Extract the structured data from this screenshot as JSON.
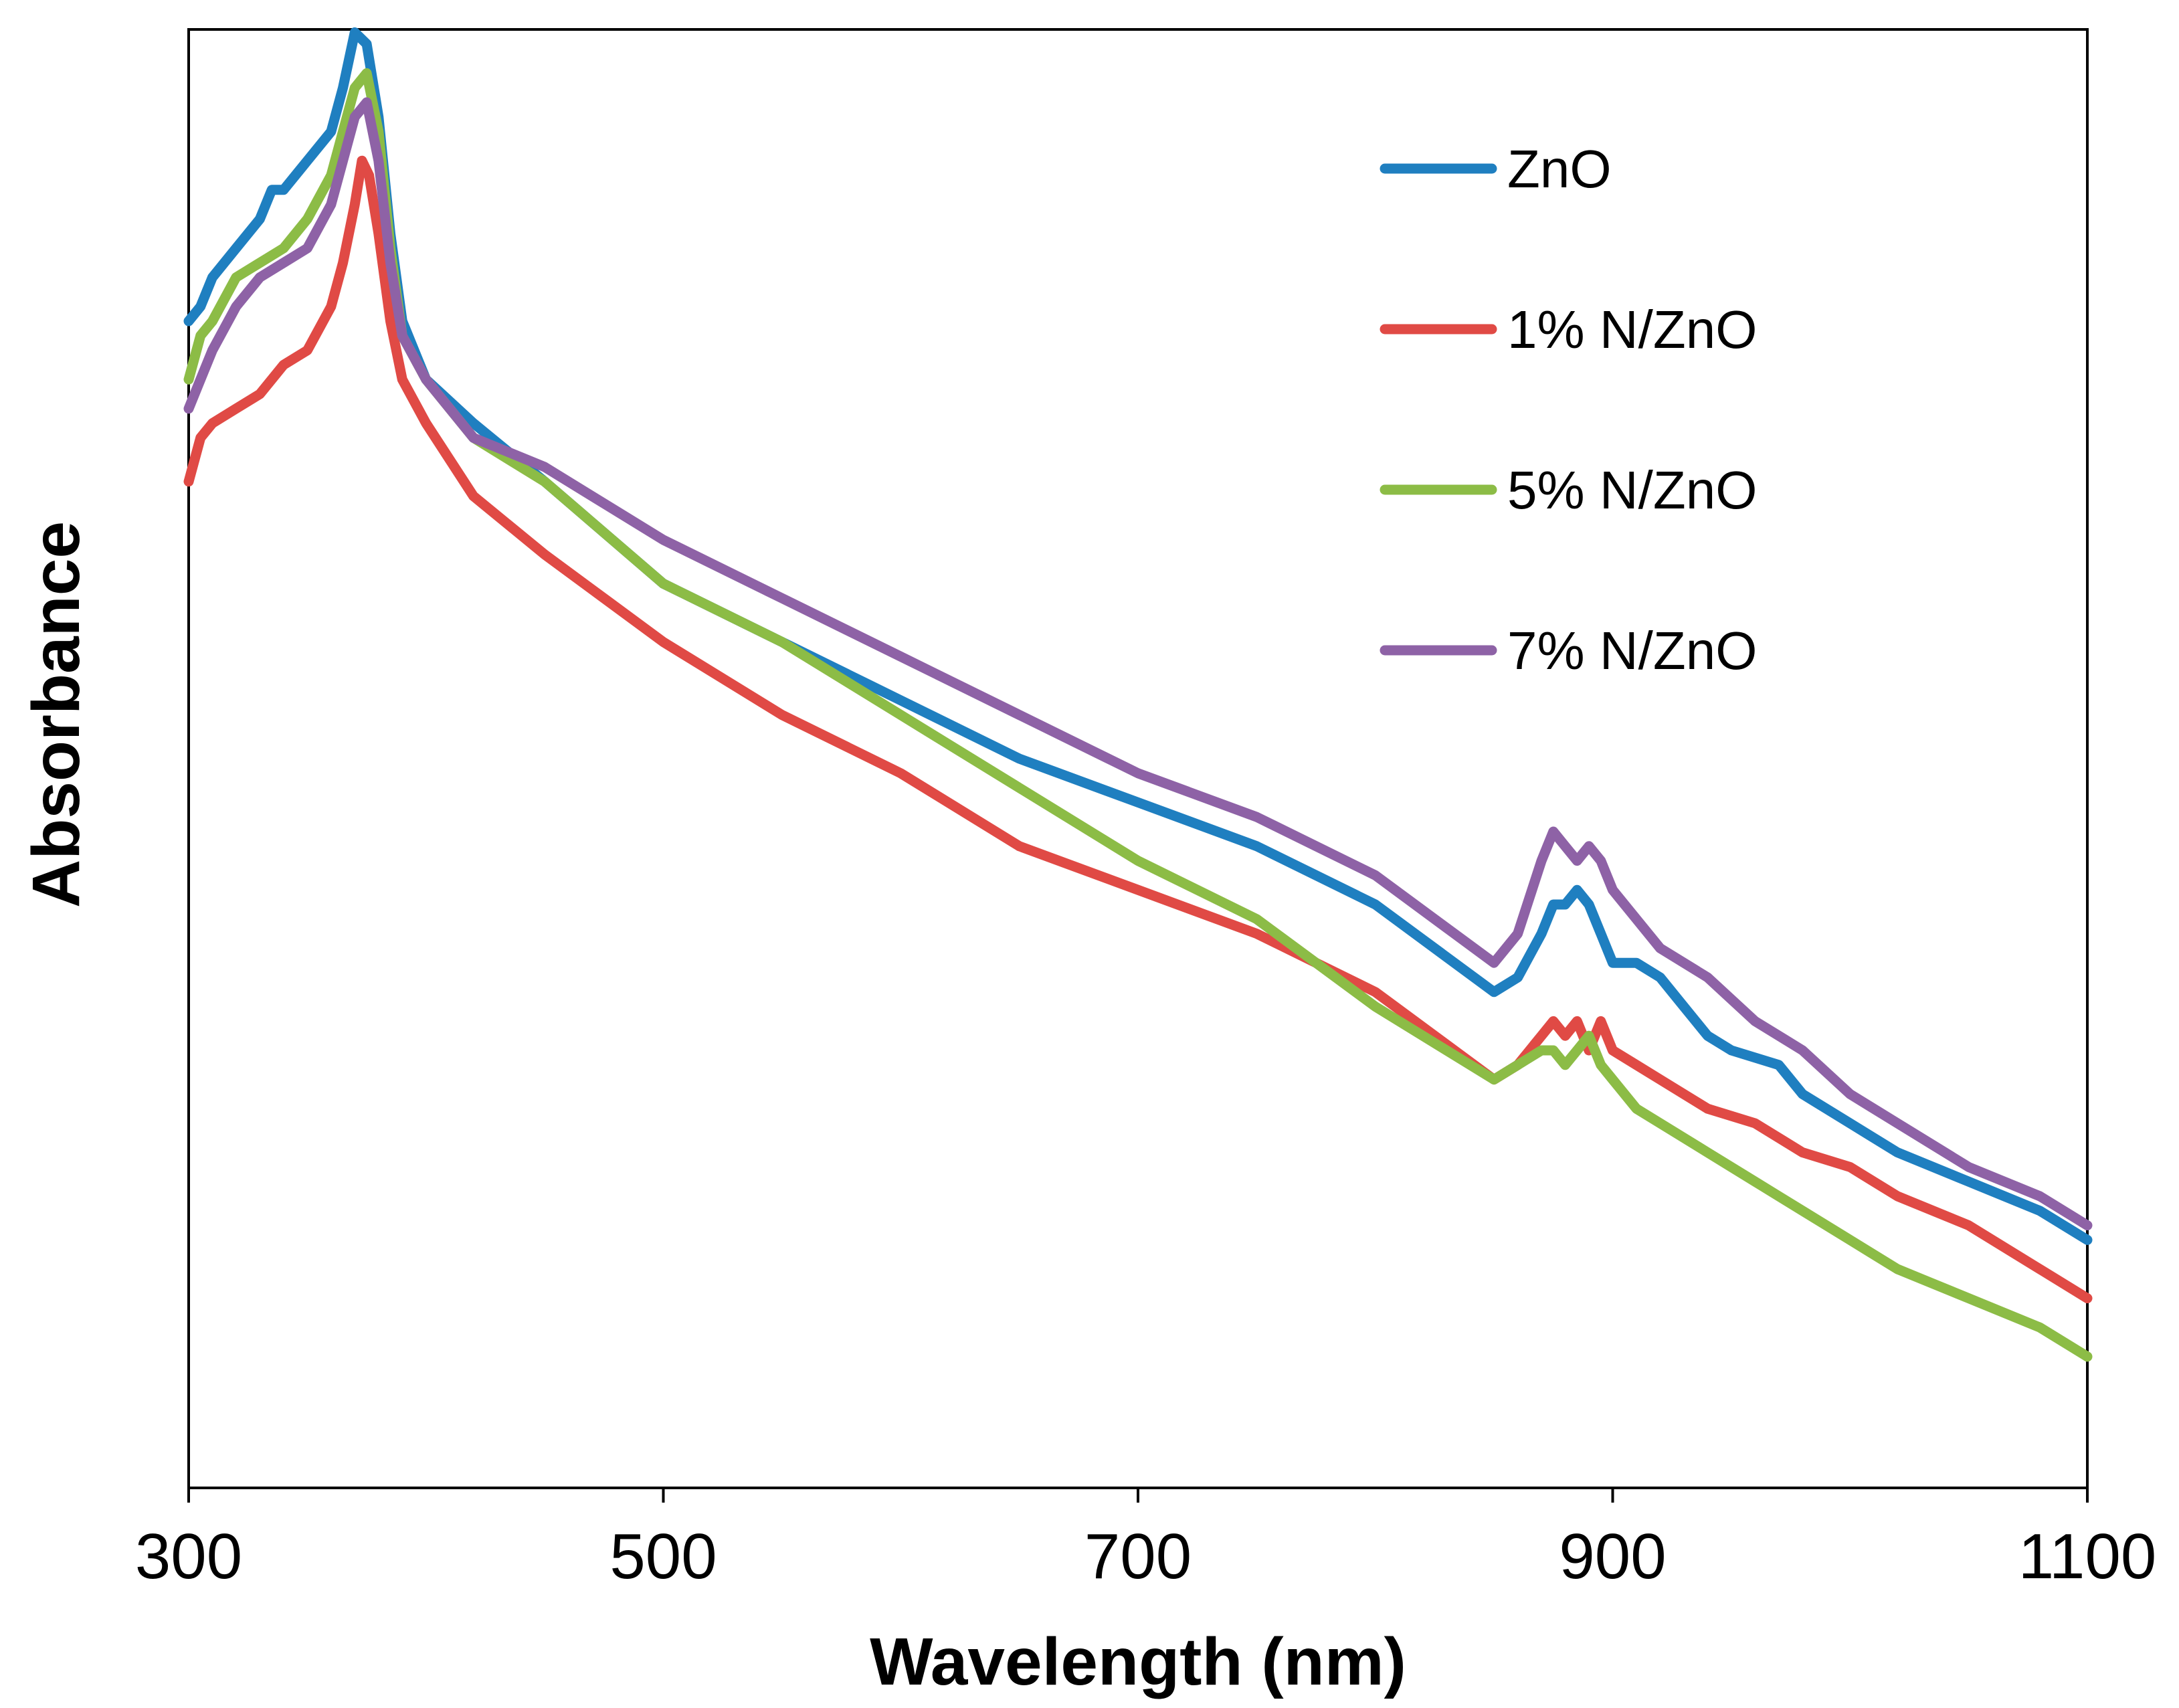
{
  "chart_data": {
    "type": "line",
    "title": "",
    "xlabel": "Wavelength (nm)",
    "ylabel": "Absorbance",
    "xlim": [
      300,
      1100
    ],
    "ylim": [
      0,
      1
    ],
    "xticks": [
      300,
      500,
      700,
      900,
      1100
    ],
    "xtick_labels": [
      "300",
      "500",
      "700",
      "900",
      "1100"
    ],
    "yticks_shown": false,
    "grid": false,
    "legend_position": "top-right",
    "series": [
      {
        "name": "ZnO",
        "color": "#1f7fc0",
        "points": [
          [
            300,
            0.8
          ],
          [
            305,
            0.81
          ],
          [
            310,
            0.83
          ],
          [
            320,
            0.85
          ],
          [
            330,
            0.87
          ],
          [
            335,
            0.89
          ],
          [
            340,
            0.89
          ],
          [
            350,
            0.91
          ],
          [
            360,
            0.93
          ],
          [
            365,
            0.96
          ],
          [
            370,
            0.998
          ],
          [
            375,
            0.99
          ],
          [
            380,
            0.94
          ],
          [
            385,
            0.86
          ],
          [
            390,
            0.8
          ],
          [
            400,
            0.76
          ],
          [
            420,
            0.73
          ],
          [
            450,
            0.69
          ],
          [
            500,
            0.62
          ],
          [
            550,
            0.58
          ],
          [
            600,
            0.54
          ],
          [
            650,
            0.5
          ],
          [
            700,
            0.47
          ],
          [
            750,
            0.44
          ],
          [
            800,
            0.4
          ],
          [
            850,
            0.34
          ],
          [
            860,
            0.35
          ],
          [
            870,
            0.38
          ],
          [
            875,
            0.4
          ],
          [
            880,
            0.4
          ],
          [
            885,
            0.41
          ],
          [
            890,
            0.4
          ],
          [
            895,
            0.38
          ],
          [
            900,
            0.36
          ],
          [
            910,
            0.36
          ],
          [
            920,
            0.35
          ],
          [
            930,
            0.33
          ],
          [
            940,
            0.31
          ],
          [
            950,
            0.3
          ],
          [
            970,
            0.29
          ],
          [
            980,
            0.27
          ],
          [
            1000,
            0.25
          ],
          [
            1020,
            0.23
          ],
          [
            1050,
            0.21
          ],
          [
            1080,
            0.19
          ],
          [
            1100,
            0.17
          ]
        ]
      },
      {
        "name": "1% N/ZnO",
        "color": "#e04a45",
        "points": [
          [
            300,
            0.69
          ],
          [
            305,
            0.72
          ],
          [
            310,
            0.73
          ],
          [
            320,
            0.74
          ],
          [
            330,
            0.75
          ],
          [
            340,
            0.77
          ],
          [
            350,
            0.78
          ],
          [
            360,
            0.81
          ],
          [
            365,
            0.84
          ],
          [
            370,
            0.88
          ],
          [
            373,
            0.91
          ],
          [
            376,
            0.9
          ],
          [
            380,
            0.86
          ],
          [
            385,
            0.8
          ],
          [
            390,
            0.76
          ],
          [
            400,
            0.73
          ],
          [
            420,
            0.68
          ],
          [
            450,
            0.64
          ],
          [
            500,
            0.58
          ],
          [
            550,
            0.53
          ],
          [
            600,
            0.49
          ],
          [
            650,
            0.44
          ],
          [
            700,
            0.41
          ],
          [
            750,
            0.38
          ],
          [
            800,
            0.34
          ],
          [
            850,
            0.28
          ],
          [
            860,
            0.29
          ],
          [
            870,
            0.31
          ],
          [
            875,
            0.32
          ],
          [
            880,
            0.31
          ],
          [
            885,
            0.32
          ],
          [
            890,
            0.3
          ],
          [
            895,
            0.32
          ],
          [
            900,
            0.3
          ],
          [
            910,
            0.29
          ],
          [
            920,
            0.28
          ],
          [
            940,
            0.26
          ],
          [
            960,
            0.25
          ],
          [
            980,
            0.23
          ],
          [
            1000,
            0.22
          ],
          [
            1020,
            0.2
          ],
          [
            1050,
            0.18
          ],
          [
            1080,
            0.15
          ],
          [
            1100,
            0.13
          ]
        ]
      },
      {
        "name": "5% N/ZnO",
        "color": "#8cbc46",
        "points": [
          [
            300,
            0.76
          ],
          [
            305,
            0.79
          ],
          [
            310,
            0.8
          ],
          [
            320,
            0.83
          ],
          [
            330,
            0.84
          ],
          [
            340,
            0.85
          ],
          [
            350,
            0.87
          ],
          [
            360,
            0.9
          ],
          [
            365,
            0.93
          ],
          [
            370,
            0.96
          ],
          [
            375,
            0.97
          ],
          [
            380,
            0.93
          ],
          [
            385,
            0.85
          ],
          [
            390,
            0.79
          ],
          [
            400,
            0.76
          ],
          [
            420,
            0.72
          ],
          [
            450,
            0.69
          ],
          [
            500,
            0.62
          ],
          [
            550,
            0.58
          ],
          [
            600,
            0.53
          ],
          [
            650,
            0.48
          ],
          [
            700,
            0.43
          ],
          [
            750,
            0.39
          ],
          [
            800,
            0.33
          ],
          [
            850,
            0.28
          ],
          [
            860,
            0.29
          ],
          [
            870,
            0.3
          ],
          [
            875,
            0.3
          ],
          [
            880,
            0.29
          ],
          [
            885,
            0.3
          ],
          [
            890,
            0.31
          ],
          [
            895,
            0.29
          ],
          [
            900,
            0.28
          ],
          [
            910,
            0.26
          ],
          [
            920,
            0.25
          ],
          [
            930,
            0.24
          ],
          [
            940,
            0.23
          ],
          [
            960,
            0.21
          ],
          [
            980,
            0.19
          ],
          [
            1000,
            0.17
          ],
          [
            1020,
            0.15
          ],
          [
            1050,
            0.13
          ],
          [
            1080,
            0.11
          ],
          [
            1100,
            0.09
          ]
        ]
      },
      {
        "name": "7% N/ZnO",
        "color": "#8e62a6",
        "points": [
          [
            300,
            0.74
          ],
          [
            305,
            0.76
          ],
          [
            310,
            0.78
          ],
          [
            320,
            0.81
          ],
          [
            330,
            0.83
          ],
          [
            340,
            0.84
          ],
          [
            350,
            0.85
          ],
          [
            360,
            0.88
          ],
          [
            365,
            0.91
          ],
          [
            370,
            0.94
          ],
          [
            375,
            0.95
          ],
          [
            380,
            0.91
          ],
          [
            385,
            0.84
          ],
          [
            390,
            0.79
          ],
          [
            400,
            0.76
          ],
          [
            420,
            0.72
          ],
          [
            450,
            0.7
          ],
          [
            500,
            0.65
          ],
          [
            550,
            0.61
          ],
          [
            600,
            0.57
          ],
          [
            650,
            0.53
          ],
          [
            700,
            0.49
          ],
          [
            750,
            0.46
          ],
          [
            800,
            0.42
          ],
          [
            850,
            0.36
          ],
          [
            860,
            0.38
          ],
          [
            870,
            0.43
          ],
          [
            875,
            0.45
          ],
          [
            880,
            0.44
          ],
          [
            885,
            0.43
          ],
          [
            890,
            0.44
          ],
          [
            895,
            0.43
          ],
          [
            900,
            0.41
          ],
          [
            910,
            0.39
          ],
          [
            920,
            0.37
          ],
          [
            940,
            0.35
          ],
          [
            960,
            0.32
          ],
          [
            980,
            0.3
          ],
          [
            1000,
            0.27
          ],
          [
            1020,
            0.25
          ],
          [
            1050,
            0.22
          ],
          [
            1080,
            0.2
          ],
          [
            1100,
            0.18
          ]
        ]
      }
    ]
  }
}
